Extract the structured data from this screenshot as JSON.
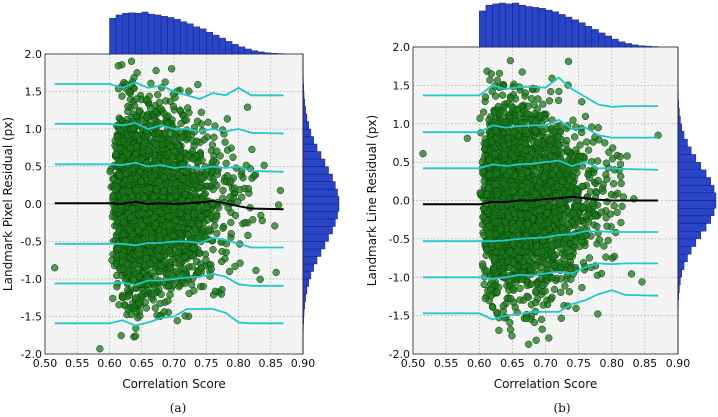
{
  "chart_data": [
    {
      "type": "scatter",
      "caption": "(a)",
      "xlabel": "Correlation Score",
      "ylabel": "Landmark Pixel Residual (px)",
      "xlim": [
        0.5,
        0.9
      ],
      "ylim": [
        -2.0,
        2.0
      ],
      "xticks": [
        "0.50",
        "0.55",
        "0.60",
        "0.65",
        "0.70",
        "0.75",
        "0.80",
        "0.85",
        "0.90"
      ],
      "yticks": [
        "2.0",
        "1.5",
        "1.0",
        "0.5",
        "0.0",
        "-0.5",
        "-1.0",
        "-1.5",
        "-2.0"
      ],
      "grid": true,
      "scatter": {
        "color": "#1a7a1a",
        "n": 2600,
        "x_min": 0.6,
        "x_mode": 0.64,
        "x_max": 0.87,
        "y_sd": 0.62,
        "outliers": [
          [
            0.515,
            -0.85
          ],
          [
            0.585,
            -1.93
          ]
        ]
      },
      "percentile_lines": {
        "x": [
          0.515,
          0.6,
          0.62,
          0.64,
          0.66,
          0.68,
          0.7,
          0.72,
          0.74,
          0.76,
          0.78,
          0.8,
          0.82,
          0.87
        ],
        "series": [
          {
            "name": "upper-3",
            "color": "#22c8cc",
            "y": [
              1.6,
              1.6,
              1.55,
              1.62,
              1.55,
              1.58,
              1.5,
              1.45,
              1.4,
              1.48,
              1.45,
              1.55,
              1.45,
              1.45
            ]
          },
          {
            "name": "upper-2",
            "color": "#22c8cc",
            "y": [
              1.07,
              1.07,
              1.05,
              1.08,
              1.0,
              1.05,
              1.0,
              1.0,
              0.97,
              1.0,
              0.97,
              1.0,
              0.95,
              0.94
            ]
          },
          {
            "name": "upper-1",
            "color": "#22c8cc",
            "y": [
              0.53,
              0.53,
              0.52,
              0.55,
              0.5,
              0.52,
              0.48,
              0.5,
              0.47,
              0.5,
              0.48,
              0.5,
              0.44,
              0.43
            ]
          },
          {
            "name": "median",
            "color": "#000000",
            "y": [
              0.01,
              0.01,
              0.0,
              0.03,
              0.0,
              0.01,
              0.0,
              0.01,
              0.02,
              0.04,
              0.01,
              -0.03,
              -0.06,
              -0.07
            ]
          },
          {
            "name": "lower-1",
            "color": "#22c8cc",
            "y": [
              -0.53,
              -0.53,
              -0.53,
              -0.55,
              -0.52,
              -0.52,
              -0.5,
              -0.5,
              -0.52,
              -0.45,
              -0.48,
              -0.53,
              -0.58,
              -0.58
            ]
          },
          {
            "name": "lower-2",
            "color": "#22c8cc",
            "y": [
              -1.06,
              -1.06,
              -1.05,
              -1.08,
              -1.02,
              -1.02,
              -1.0,
              -0.98,
              -0.97,
              -0.93,
              -0.97,
              -1.07,
              -1.09,
              -1.09
            ]
          },
          {
            "name": "lower-3",
            "color": "#22c8cc",
            "y": [
              -1.59,
              -1.59,
              -1.55,
              -1.62,
              -1.58,
              -1.52,
              -1.5,
              -1.4,
              -1.4,
              -1.4,
              -1.45,
              -1.58,
              -1.59,
              -1.59
            ]
          }
        ]
      },
      "x_histogram": {
        "color": "#2a44c8",
        "bin_start": 0.6,
        "bin_width": 0.01,
        "values": [
          0.85,
          0.93,
          0.97,
          0.98,
          0.97,
          1.0,
          0.95,
          0.93,
          0.9,
          0.87,
          0.83,
          0.77,
          0.72,
          0.65,
          0.6,
          0.52,
          0.45,
          0.38,
          0.3,
          0.23,
          0.17,
          0.12,
          0.08,
          0.05,
          0.03,
          0.02,
          0.01
        ]
      },
      "y_histogram": {
        "color": "#2a44c8",
        "bin_start": -2.0,
        "bin_width": 0.1,
        "values": [
          0.002,
          0.003,
          0.006,
          0.011,
          0.018,
          0.03,
          0.048,
          0.074,
          0.11,
          0.16,
          0.22,
          0.3,
          0.39,
          0.5,
          0.61,
          0.71,
          0.82,
          0.9,
          0.96,
          1.0,
          1.0,
          0.96,
          0.9,
          0.82,
          0.71,
          0.61,
          0.5,
          0.39,
          0.3,
          0.22,
          0.16,
          0.11,
          0.074,
          0.048,
          0.03,
          0.018,
          0.011,
          0.006,
          0.003,
          0.002
        ]
      }
    },
    {
      "type": "scatter",
      "caption": "(b)",
      "xlabel": "Correlation Score",
      "ylabel": "Landmark Line Residual (px)",
      "xlim": [
        0.5,
        0.9
      ],
      "ylim": [
        -2.0,
        2.0
      ],
      "xticks": [
        "0.50",
        "0.55",
        "0.60",
        "0.65",
        "0.70",
        "0.75",
        "0.80",
        "0.85",
        "0.90"
      ],
      "yticks": [
        "2.0",
        "1.5",
        "1.0",
        "0.5",
        "0.0",
        "-0.5",
        "-1.0",
        "-1.5",
        "-2.0"
      ],
      "grid": true,
      "scatter": {
        "color": "#1a7a1a",
        "n": 2600,
        "x_min": 0.6,
        "x_mode": 0.64,
        "x_max": 0.87,
        "y_sd": 0.6,
        "outliers": [
          [
            0.515,
            0.61
          ],
          [
            0.582,
            0.81
          ],
          [
            0.87,
            0.85
          ]
        ]
      },
      "percentile_lines": {
        "x": [
          0.515,
          0.6,
          0.62,
          0.64,
          0.66,
          0.68,
          0.7,
          0.72,
          0.74,
          0.76,
          0.78,
          0.8,
          0.82,
          0.87
        ],
        "series": [
          {
            "name": "upper-3",
            "color": "#22c8cc",
            "y": [
              1.37,
              1.37,
              1.5,
              1.45,
              1.48,
              1.48,
              1.47,
              1.6,
              1.45,
              1.35,
              1.25,
              1.22,
              1.23,
              1.23
            ]
          },
          {
            "name": "upper-2",
            "color": "#22c8cc",
            "y": [
              0.89,
              0.89,
              0.98,
              0.95,
              0.97,
              0.98,
              0.98,
              1.05,
              0.93,
              0.95,
              0.85,
              0.82,
              0.82,
              0.82
            ]
          },
          {
            "name": "upper-1",
            "color": "#22c8cc",
            "y": [
              0.42,
              0.42,
              0.47,
              0.45,
              0.47,
              0.48,
              0.5,
              0.52,
              0.45,
              0.5,
              0.42,
              0.42,
              0.41,
              0.4
            ]
          },
          {
            "name": "median",
            "color": "#000000",
            "y": [
              -0.05,
              -0.05,
              -0.02,
              -0.02,
              0.0,
              0.0,
              0.02,
              0.03,
              0.05,
              0.03,
              0.01,
              0.0,
              0.0,
              0.0
            ]
          },
          {
            "name": "lower-1",
            "color": "#22c8cc",
            "y": [
              -0.53,
              -0.53,
              -0.53,
              -0.52,
              -0.5,
              -0.49,
              -0.48,
              -0.45,
              -0.44,
              -0.4,
              -0.4,
              -0.41,
              -0.41,
              -0.41
            ]
          },
          {
            "name": "lower-2",
            "color": "#22c8cc",
            "y": [
              -1.0,
              -1.0,
              -1.02,
              -1.0,
              -0.97,
              -0.98,
              -0.95,
              -0.93,
              -0.95,
              -0.87,
              -0.82,
              -0.83,
              -0.82,
              -0.82
            ]
          },
          {
            "name": "lower-3",
            "color": "#22c8cc",
            "y": [
              -1.47,
              -1.47,
              -1.55,
              -1.5,
              -1.48,
              -1.45,
              -1.45,
              -1.45,
              -1.35,
              -1.3,
              -1.22,
              -1.17,
              -1.23,
              -1.24
            ]
          }
        ]
      },
      "x_histogram": {
        "color": "#2a44c8",
        "bin_start": 0.6,
        "bin_width": 0.01,
        "values": [
          0.82,
          0.95,
          0.98,
          1.0,
          0.98,
          1.0,
          0.95,
          0.92,
          0.9,
          0.88,
          0.84,
          0.8,
          0.74,
          0.68,
          0.62,
          0.55,
          0.47,
          0.4,
          0.32,
          0.25,
          0.18,
          0.12,
          0.08,
          0.05,
          0.03,
          0.02,
          0.01
        ]
      },
      "y_histogram": {
        "color": "#2a44c8",
        "bin_start": -2.0,
        "bin_width": 0.1,
        "values": [
          0.0,
          0.0002,
          0.0005,
          0.001,
          0.0025,
          0.005,
          0.01,
          0.02,
          0.037,
          0.063,
          0.1,
          0.16,
          0.25,
          0.35,
          0.47,
          0.6,
          0.74,
          0.86,
          0.95,
          1.0,
          1.0,
          0.95,
          0.86,
          0.74,
          0.6,
          0.47,
          0.35,
          0.25,
          0.16,
          0.1,
          0.063,
          0.037,
          0.02,
          0.01,
          0.005,
          0.0025,
          0.001,
          0.0005,
          0.0002,
          0.0
        ]
      }
    }
  ]
}
